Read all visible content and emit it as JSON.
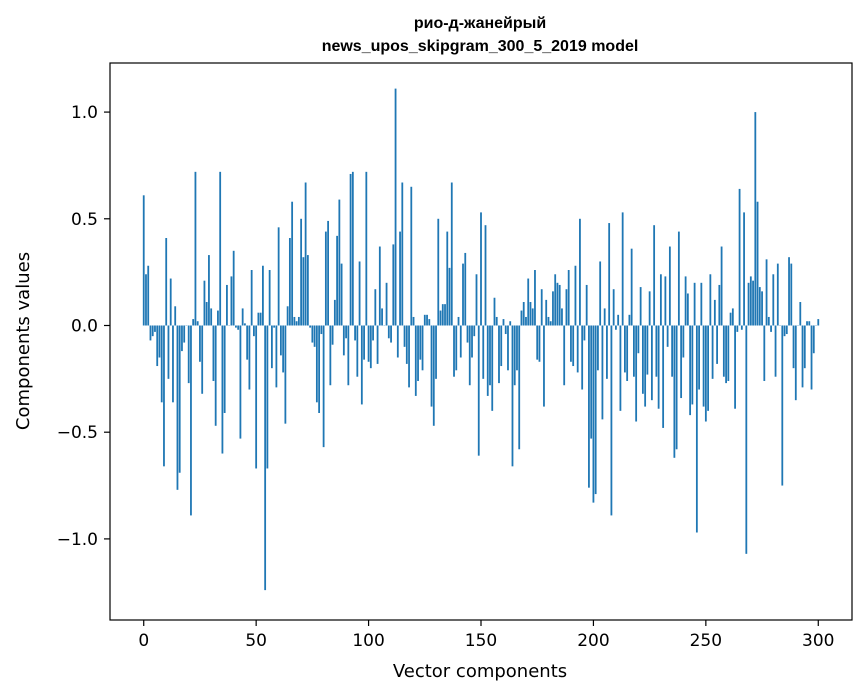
{
  "chart_data": {
    "type": "bar",
    "title_line1": "рио-д-жанейрый",
    "title_line2": "news_upos_skipgram_300_5_2019 model",
    "xlabel": "Vector components",
    "ylabel": "Components values",
    "xlim": [
      -15,
      315
    ],
    "ylim": [
      -1.38,
      1.23
    ],
    "xticks": [
      0,
      50,
      100,
      150,
      200,
      250,
      300
    ],
    "yticks": [
      -1.0,
      -0.5,
      0.0,
      0.5,
      1.0
    ],
    "ytick_labels": [
      "−1.0",
      "−0.5",
      "0.0",
      "0.5",
      "1.0"
    ],
    "bar_color": "#1f77b4",
    "grid": false,
    "values": [
      0.61,
      0.24,
      0.28,
      -0.07,
      -0.05,
      -0.03,
      -0.19,
      -0.15,
      -0.36,
      -0.66,
      0.41,
      -0.25,
      0.22,
      -0.36,
      0.09,
      -0.77,
      -0.69,
      -0.12,
      -0.08,
      0.0,
      -0.27,
      -0.89,
      0.03,
      0.72,
      0.02,
      -0.17,
      -0.32,
      0.21,
      0.11,
      0.33,
      0.08,
      -0.26,
      -0.47,
      0.07,
      0.72,
      -0.6,
      -0.41,
      0.19,
      0.0,
      0.23,
      0.35,
      -0.01,
      -0.02,
      -0.53,
      0.08,
      0.01,
      -0.16,
      -0.3,
      0.26,
      -0.05,
      -0.67,
      0.06,
      0.06,
      0.28,
      -1.24,
      -0.67,
      0.26,
      -0.2,
      -0.01,
      -0.29,
      0.46,
      -0.14,
      -0.22,
      -0.46,
      0.09,
      0.41,
      0.58,
      0.04,
      0.02,
      0.04,
      0.5,
      0.32,
      0.67,
      0.33,
      -0.01,
      -0.08,
      -0.1,
      -0.36,
      -0.41,
      -0.04,
      -0.57,
      0.44,
      0.49,
      -0.28,
      -0.09,
      0.12,
      0.42,
      0.59,
      0.29,
      -0.14,
      -0.06,
      -0.28,
      0.71,
      0.72,
      -0.07,
      -0.24,
      0.3,
      -0.37,
      -0.16,
      0.72,
      -0.17,
      -0.2,
      -0.07,
      0.17,
      -0.18,
      0.37,
      0.08,
      0.0,
      0.2,
      -0.06,
      -0.08,
      0.38,
      1.11,
      -0.15,
      0.44,
      0.67,
      -0.1,
      -0.18,
      -0.29,
      0.65,
      0.04,
      -0.33,
      -0.26,
      -0.16,
      -0.21,
      0.05,
      0.05,
      0.03,
      -0.38,
      -0.47,
      -0.25,
      0.5,
      0.07,
      0.1,
      0.1,
      0.44,
      0.27,
      0.67,
      -0.24,
      -0.21,
      0.04,
      -0.15,
      0.29,
      0.34,
      -0.08,
      -0.28,
      -0.15,
      -0.05,
      0.24,
      -0.61,
      0.53,
      -0.25,
      0.47,
      -0.33,
      -0.28,
      -0.4,
      0.13,
      0.04,
      -0.27,
      -0.19,
      0.03,
      -0.04,
      -0.21,
      0.02,
      -0.66,
      -0.28,
      -0.21,
      -0.58,
      0.07,
      0.11,
      0.04,
      0.22,
      0.11,
      0.08,
      0.26,
      -0.16,
      -0.17,
      0.17,
      -0.38,
      0.12,
      0.04,
      0.02,
      0.16,
      0.24,
      0.2,
      0.19,
      0.08,
      -0.28,
      0.17,
      0.26,
      -0.17,
      -0.19,
      0.28,
      -0.22,
      0.5,
      -0.3,
      -0.07,
      0.19,
      -0.76,
      -0.53,
      -0.83,
      -0.79,
      -0.21,
      0.3,
      -0.44,
      0.08,
      -0.25,
      0.48,
      -0.89,
      0.17,
      -0.02,
      0.05,
      -0.4,
      0.53,
      -0.22,
      -0.26,
      0.05,
      0.36,
      -0.24,
      -0.45,
      -0.13,
      0.18,
      -0.32,
      -0.38,
      -0.23,
      0.16,
      -0.35,
      0.47,
      -0.24,
      -0.39,
      0.24,
      -0.48,
      0.23,
      -0.1,
      0.37,
      -0.24,
      -0.62,
      -0.58,
      0.44,
      -0.34,
      -0.15,
      0.23,
      0.15,
      -0.42,
      -0.37,
      0.2,
      -0.97,
      -0.3,
      0.2,
      -0.38,
      -0.45,
      -0.4,
      0.24,
      -0.25,
      0.12,
      -0.18,
      0.19,
      0.37,
      -0.24,
      -0.27,
      -0.26,
      0.06,
      0.08,
      -0.39,
      -0.03,
      0.64,
      -0.02,
      0.53,
      -1.07,
      0.2,
      0.23,
      0.21,
      1.0,
      0.58,
      0.18,
      0.16,
      -0.26,
      0.31,
      0.04,
      -0.03,
      0.24,
      -0.24,
      0.29,
      0.0,
      -0.75,
      -0.05,
      -0.04,
      0.32,
      0.29,
      -0.2,
      -0.35,
      0.0,
      0.11,
      -0.29,
      -0.2,
      0.02,
      0.02,
      -0.3,
      -0.13,
      0.0,
      0.03
    ]
  }
}
